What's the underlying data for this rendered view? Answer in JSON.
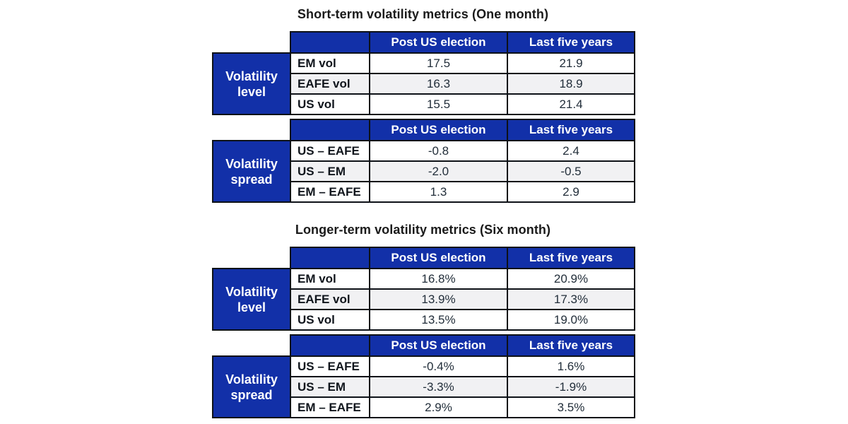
{
  "colors": {
    "header_blue": "#1230a8",
    "border_dark": "#0d1117",
    "stripe_gray": "#f1f1f3",
    "header_text": "#ffffff",
    "title_text": "#1a1a1a",
    "label_text": "#10151c",
    "value_text": "#222e3a"
  },
  "chart_data": [
    {
      "type": "table",
      "title": "Short-term volatility metrics (One month)",
      "columns": [
        "Post US election",
        "Last five years"
      ],
      "sections": [
        {
          "group_label": "Volatility level",
          "rows": [
            {
              "label": "EM vol",
              "values": [
                "17.5",
                "21.9"
              ]
            },
            {
              "label": "EAFE vol",
              "values": [
                "16.3",
                "18.9"
              ]
            },
            {
              "label": "US vol",
              "values": [
                "15.5",
                "21.4"
              ]
            }
          ]
        },
        {
          "group_label": "Volatility spread",
          "rows": [
            {
              "label": "US – EAFE",
              "values": [
                "-0.8",
                "2.4"
              ]
            },
            {
              "label": "US – EM",
              "values": [
                "-2.0",
                "-0.5"
              ]
            },
            {
              "label": "EM – EAFE",
              "values": [
                "1.3",
                "2.9"
              ]
            }
          ]
        }
      ]
    },
    {
      "type": "table",
      "title": "Longer-term volatility metrics (Six month)",
      "columns": [
        "Post US election",
        "Last five years"
      ],
      "sections": [
        {
          "group_label": "Volatility level",
          "rows": [
            {
              "label": "EM vol",
              "values": [
                "16.8%",
                "20.9%"
              ]
            },
            {
              "label": "EAFE vol",
              "values": [
                "13.9%",
                "17.3%"
              ]
            },
            {
              "label": "US vol",
              "values": [
                "13.5%",
                "19.0%"
              ]
            }
          ]
        },
        {
          "group_label": "Volatility spread",
          "rows": [
            {
              "label": "US – EAFE",
              "values": [
                "-0.4%",
                "1.6%"
              ]
            },
            {
              "label": "US – EM",
              "values": [
                "-3.3%",
                "-1.9%"
              ]
            },
            {
              "label": "EM – EAFE",
              "values": [
                "2.9%",
                "3.5%"
              ]
            }
          ]
        }
      ]
    }
  ]
}
